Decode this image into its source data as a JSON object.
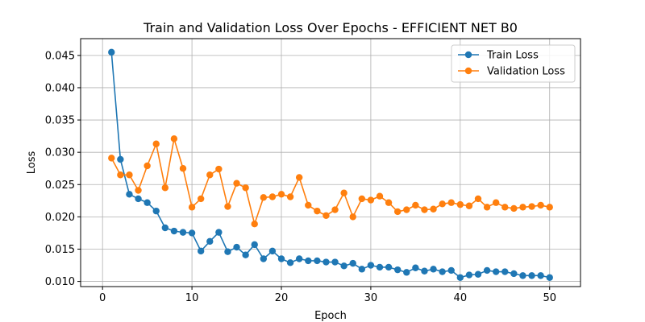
{
  "chart_data": {
    "type": "line",
    "title": "Train and Validation Loss Over Epochs - EFFICIENT NET B0",
    "xlabel": "Epoch",
    "ylabel": "Loss",
    "xlim": [
      -2.45,
      53.45
    ],
    "ylim": [
      0.0092,
      0.0476
    ],
    "xticks": [
      "0",
      "10",
      "20",
      "30",
      "40",
      "50"
    ],
    "yticks": [
      "0.010",
      "0.015",
      "0.020",
      "0.025",
      "0.030",
      "0.035",
      "0.040",
      "0.045"
    ],
    "grid": true,
    "legend_position": "top-right",
    "x": [
      1,
      2,
      3,
      4,
      5,
      6,
      7,
      8,
      9,
      10,
      11,
      12,
      13,
      14,
      15,
      16,
      17,
      18,
      19,
      20,
      21,
      22,
      23,
      24,
      25,
      26,
      27,
      28,
      29,
      30,
      31,
      32,
      33,
      34,
      35,
      36,
      37,
      38,
      39,
      40,
      41,
      42,
      43,
      44,
      45,
      46,
      47,
      48,
      49,
      50
    ],
    "series": [
      {
        "name": "Train Loss",
        "color": "#1f77b4",
        "values": [
          0.0455,
          0.0289,
          0.0235,
          0.0228,
          0.0222,
          0.0209,
          0.0183,
          0.0178,
          0.0176,
          0.0175,
          0.0147,
          0.0162,
          0.0176,
          0.0146,
          0.0153,
          0.0141,
          0.0157,
          0.0135,
          0.0147,
          0.0135,
          0.0129,
          0.0135,
          0.0132,
          0.0132,
          0.013,
          0.013,
          0.0124,
          0.0128,
          0.0119,
          0.0125,
          0.0122,
          0.0122,
          0.0118,
          0.0114,
          0.0121,
          0.0116,
          0.0119,
          0.0115,
          0.0117,
          0.0106,
          0.011,
          0.0111,
          0.0117,
          0.0115,
          0.0115,
          0.0112,
          0.0109,
          0.0109,
          0.0109,
          0.0106
        ]
      },
      {
        "name": "Validation Loss",
        "color": "#ff7f0e",
        "values": [
          0.0291,
          0.0265,
          0.0265,
          0.0241,
          0.0279,
          0.0313,
          0.0245,
          0.0321,
          0.0275,
          0.0215,
          0.0228,
          0.0265,
          0.0274,
          0.0216,
          0.0252,
          0.0245,
          0.0189,
          0.023,
          0.0231,
          0.0235,
          0.0231,
          0.0261,
          0.0218,
          0.0209,
          0.0202,
          0.0211,
          0.0237,
          0.02,
          0.0228,
          0.0226,
          0.0232,
          0.0222,
          0.0208,
          0.0211,
          0.0218,
          0.0211,
          0.0212,
          0.022,
          0.0222,
          0.0219,
          0.0217,
          0.0228,
          0.0215,
          0.0222,
          0.0215,
          0.0213,
          0.0215,
          0.0216,
          0.0218,
          0.0215
        ]
      }
    ]
  }
}
